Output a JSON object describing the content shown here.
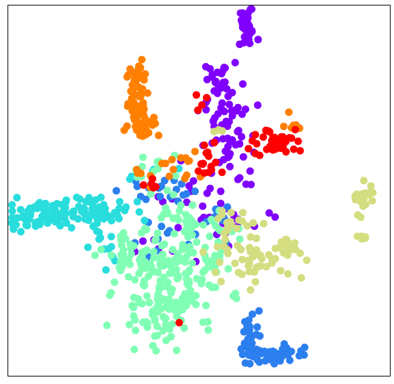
{
  "chart_data": {
    "type": "scatter",
    "title": "",
    "xlabel": "",
    "ylabel": "",
    "xlim": [
      0,
      100
    ],
    "ylim": [
      0,
      100
    ],
    "grid": false,
    "legend": "none",
    "ticks": "none",
    "series": [
      {
        "color": "#8000ff",
        "clusters": [
          {
            "cx": 62.4,
            "cy": 93.6,
            "sx": 1.4,
            "sy": 2.7,
            "n": 30
          },
          {
            "cx": 55.4,
            "cy": 80.1,
            "sx": 2.0,
            "sy": 2.3,
            "n": 18
          },
          {
            "cx": 57.4,
            "cy": 65.5,
            "sx": 3.0,
            "sy": 6.5,
            "n": 60
          },
          {
            "cx": 51.6,
            "cy": 49.2,
            "sx": 6.5,
            "sy": 4.5,
            "n": 20
          },
          {
            "cx": 62.4,
            "cy": 40.4,
            "sx": 5.5,
            "sy": 3.0,
            "n": 12
          },
          {
            "cx": 42.0,
            "cy": 35.0,
            "sx": 5.0,
            "sy": 3.0,
            "n": 8
          }
        ]
      },
      {
        "color": "#2c7fee",
        "clusters": [
          {
            "cx": 63.6,
            "cy": 10.5,
            "sx": 1.5,
            "sy": 3.5,
            "n": 30
          },
          {
            "cx": 69.5,
            "cy": 6.0,
            "sx": 4.0,
            "sy": 1.4,
            "n": 45
          },
          {
            "cx": 36.0,
            "cy": 50.6,
            "sx": 5.5,
            "sy": 1.8,
            "n": 18
          },
          {
            "cx": 42.0,
            "cy": 37.0,
            "sx": 4.5,
            "sy": 3.0,
            "n": 10
          },
          {
            "cx": 55.0,
            "cy": 40.0,
            "sx": 3.0,
            "sy": 4.0,
            "n": 8
          }
        ]
      },
      {
        "color": "#2adddd",
        "clusters": [
          {
            "cx": 9.0,
            "cy": 43.2,
            "sx": 5.5,
            "sy": 1.8,
            "n": 90
          },
          {
            "cx": 23.5,
            "cy": 44.5,
            "sx": 4.5,
            "sy": 2.2,
            "n": 55
          },
          {
            "cx": 25.0,
            "cy": 35.0,
            "sx": 3.0,
            "sy": 2.5,
            "n": 10
          },
          {
            "cx": 36.0,
            "cy": 54.0,
            "sx": 3.0,
            "sy": 2.0,
            "n": 6
          }
        ]
      },
      {
        "color": "#80ffb4",
        "clusters": [
          {
            "cx": 41.5,
            "cy": 20.5,
            "sx": 7.0,
            "sy": 5.5,
            "n": 110
          },
          {
            "cx": 42.5,
            "cy": 31.0,
            "sx": 8.5,
            "sy": 4.0,
            "n": 90
          },
          {
            "cx": 47.0,
            "cy": 40.5,
            "sx": 6.5,
            "sy": 3.0,
            "n": 40
          },
          {
            "cx": 33.0,
            "cy": 31.5,
            "sx": 3.5,
            "sy": 2.0,
            "n": 20
          },
          {
            "cx": 40.0,
            "cy": 10.5,
            "sx": 3.0,
            "sy": 2.0,
            "n": 10
          },
          {
            "cx": 38.0,
            "cy": 56.5,
            "sx": 3.5,
            "sy": 2.5,
            "n": 12
          }
        ]
      },
      {
        "color": "#d4dd80",
        "clusters": [
          {
            "cx": 93.0,
            "cy": 47.5,
            "sx": 1.5,
            "sy": 2.5,
            "n": 25
          },
          {
            "cx": 93.0,
            "cy": 37.5,
            "sx": 0.7,
            "sy": 0.7,
            "n": 8
          },
          {
            "cx": 65.5,
            "cy": 31.5,
            "sx": 6.0,
            "sy": 2.5,
            "n": 50
          },
          {
            "cx": 59.5,
            "cy": 40.5,
            "sx": 3.5,
            "sy": 2.0,
            "n": 20
          },
          {
            "cx": 72.0,
            "cy": 36.5,
            "sx": 3.0,
            "sy": 1.5,
            "n": 12
          },
          {
            "cx": 55.0,
            "cy": 67.0,
            "sx": 1.0,
            "sy": 1.0,
            "n": 3
          }
        ]
      },
      {
        "color": "#ff8000",
        "clusters": [
          {
            "cx": 34.0,
            "cy": 76.0,
            "sx": 1.5,
            "sy": 5.5,
            "n": 55
          },
          {
            "cx": 35.5,
            "cy": 68.5,
            "sx": 2.0,
            "sy": 2.0,
            "n": 30
          },
          {
            "cx": 75.0,
            "cy": 67.5,
            "sx": 1.3,
            "sy": 1.3,
            "n": 8
          },
          {
            "cx": 45.0,
            "cy": 57.0,
            "sx": 3.0,
            "sy": 2.0,
            "n": 12
          },
          {
            "cx": 37.0,
            "cy": 56.0,
            "sx": 2.0,
            "sy": 1.5,
            "n": 6
          }
        ]
      },
      {
        "color": "#ff0000",
        "clusters": [
          {
            "cx": 70.5,
            "cy": 63.0,
            "sx": 3.5,
            "sy": 2.0,
            "n": 45
          },
          {
            "cx": 53.0,
            "cy": 57.5,
            "sx": 3.0,
            "sy": 2.0,
            "n": 15
          },
          {
            "cx": 49.5,
            "cy": 72.5,
            "sx": 1.0,
            "sy": 1.5,
            "n": 4
          },
          {
            "cx": 38.0,
            "cy": 51.5,
            "sx": 1.5,
            "sy": 1.5,
            "n": 5
          },
          {
            "cx": 45.0,
            "cy": 15.5,
            "sx": 0.5,
            "sy": 0.5,
            "n": 1
          }
        ]
      }
    ]
  }
}
